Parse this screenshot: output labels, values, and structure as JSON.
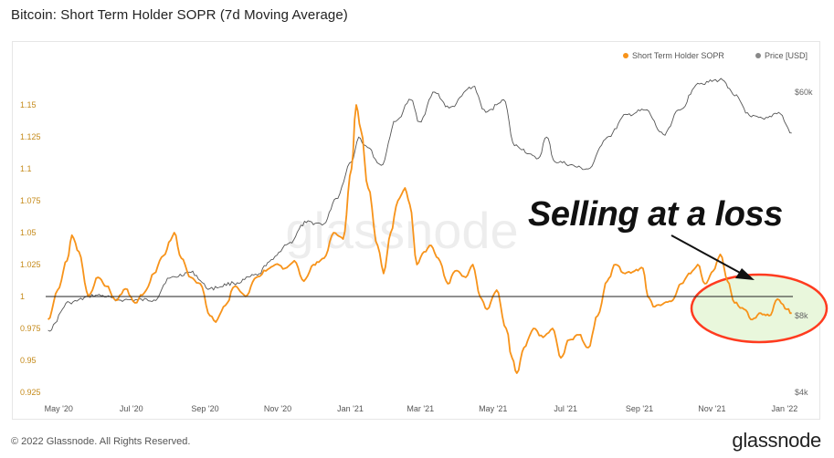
{
  "page": {
    "title": "Bitcoin: Short Term Holder SOPR (7d Moving Average)",
    "copyright": "© 2022 Glassnode. All Rights Reserved.",
    "brand": "glassnode",
    "watermark": "glassnode",
    "annotation": "Selling at a loss"
  },
  "colors": {
    "sopr": "#f7931a",
    "price": "#555555",
    "baseline": "#222222",
    "highlight": "#ff3b1f",
    "highlight_fill": "#e9f7dc"
  },
  "chart_data": {
    "type": "line",
    "title": "Bitcoin: Short Term Holder SOPR (7d Moving Average)",
    "legend": [
      "Short Term Holder SOPR",
      "Price [USD]"
    ],
    "legend_position": "top-right",
    "x_ticks": [
      "May '20",
      "Jul '20",
      "Sep '20",
      "Nov '20",
      "Jan '21",
      "Mar '21",
      "May '21",
      "Jul '21",
      "Sep '21",
      "Nov '21",
      "Jan '22"
    ],
    "x_range": [
      "2020-04-20",
      "2022-01-08"
    ],
    "y_left": {
      "label": "",
      "scale": "linear",
      "range": [
        0.925,
        1.16
      ],
      "ticks": [
        1.15,
        1.125,
        1.1,
        1.075,
        1.05,
        1.025,
        1,
        0.975,
        0.95,
        0.925
      ]
    },
    "y_right": {
      "label": "",
      "scale": "log",
      "ticks": [
        "$60k",
        "$8k",
        "$4k"
      ],
      "tick_values": [
        60000,
        8000,
        4000
      ]
    },
    "baseline": 1,
    "grid": false,
    "series": [
      {
        "name": "Short Term Holder SOPR",
        "axis": "left",
        "points": [
          [
            "2020-04-22",
            0.982
          ],
          [
            "2020-04-30",
            1.005
          ],
          [
            "2020-05-08",
            1.028
          ],
          [
            "2020-05-12",
            1.048
          ],
          [
            "2020-05-18",
            1.035
          ],
          [
            "2020-05-26",
            1.0
          ],
          [
            "2020-06-03",
            1.015
          ],
          [
            "2020-06-10",
            1.008
          ],
          [
            "2020-06-18",
            0.997
          ],
          [
            "2020-06-26",
            1.006
          ],
          [
            "2020-07-04",
            0.995
          ],
          [
            "2020-07-12",
            1.003
          ],
          [
            "2020-07-20",
            1.018
          ],
          [
            "2020-07-28",
            1.032
          ],
          [
            "2020-08-03",
            1.044
          ],
          [
            "2020-08-06",
            1.05
          ],
          [
            "2020-08-12",
            1.03
          ],
          [
            "2020-08-20",
            1.015
          ],
          [
            "2020-08-28",
            1.01
          ],
          [
            "2020-09-05",
            0.985
          ],
          [
            "2020-09-10",
            0.98
          ],
          [
            "2020-09-18",
            0.993
          ],
          [
            "2020-09-26",
            1.008
          ],
          [
            "2020-10-05",
            1.0
          ],
          [
            "2020-10-14",
            1.015
          ],
          [
            "2020-10-22",
            1.02
          ],
          [
            "2020-10-30",
            1.025
          ],
          [
            "2020-11-07",
            1.022
          ],
          [
            "2020-11-15",
            1.028
          ],
          [
            "2020-11-23",
            1.012
          ],
          [
            "2020-12-01",
            1.025
          ],
          [
            "2020-12-10",
            1.03
          ],
          [
            "2020-12-18",
            1.05
          ],
          [
            "2020-12-26",
            1.045
          ],
          [
            "2021-01-02",
            1.1
          ],
          [
            "2021-01-06",
            1.15
          ],
          [
            "2021-01-10",
            1.13
          ],
          [
            "2021-01-16",
            1.085
          ],
          [
            "2021-01-24",
            1.04
          ],
          [
            "2021-01-29",
            1.018
          ],
          [
            "2021-02-04",
            1.05
          ],
          [
            "2021-02-10",
            1.075
          ],
          [
            "2021-02-16",
            1.085
          ],
          [
            "2021-02-20",
            1.072
          ],
          [
            "2021-02-26",
            1.025
          ],
          [
            "2021-03-04",
            1.035
          ],
          [
            "2021-03-10",
            1.04
          ],
          [
            "2021-03-16",
            1.03
          ],
          [
            "2021-03-24",
            1.01
          ],
          [
            "2021-03-30",
            1.02
          ],
          [
            "2021-04-08",
            1.015
          ],
          [
            "2021-04-14",
            1.025
          ],
          [
            "2021-04-20",
            1.0
          ],
          [
            "2021-04-26",
            0.99
          ],
          [
            "2021-05-04",
            1.005
          ],
          [
            "2021-05-12",
            0.975
          ],
          [
            "2021-05-17",
            0.952
          ],
          [
            "2021-05-21",
            0.94
          ],
          [
            "2021-05-27",
            0.96
          ],
          [
            "2021-06-04",
            0.975
          ],
          [
            "2021-06-12",
            0.968
          ],
          [
            "2021-06-20",
            0.975
          ],
          [
            "2021-06-27",
            0.952
          ],
          [
            "2021-07-04",
            0.966
          ],
          [
            "2021-07-12",
            0.97
          ],
          [
            "2021-07-20",
            0.96
          ],
          [
            "2021-07-28",
            0.985
          ],
          [
            "2021-08-05",
            1.012
          ],
          [
            "2021-08-12",
            1.025
          ],
          [
            "2021-08-20",
            1.018
          ],
          [
            "2021-08-28",
            1.02
          ],
          [
            "2021-09-04",
            1.022
          ],
          [
            "2021-09-08",
            1.0
          ],
          [
            "2021-09-14",
            0.992
          ],
          [
            "2021-09-22",
            0.995
          ],
          [
            "2021-09-29",
            0.997
          ],
          [
            "2021-10-06",
            1.01
          ],
          [
            "2021-10-14",
            1.018
          ],
          [
            "2021-10-20",
            1.025
          ],
          [
            "2021-10-26",
            1.01
          ],
          [
            "2021-11-02",
            1.02
          ],
          [
            "2021-11-08",
            1.033
          ],
          [
            "2021-11-14",
            1.012
          ],
          [
            "2021-11-20",
            0.995
          ],
          [
            "2021-11-28",
            0.99
          ],
          [
            "2021-12-05",
            0.982
          ],
          [
            "2021-12-12",
            0.987
          ],
          [
            "2021-12-19",
            0.985
          ],
          [
            "2021-12-26",
            0.998
          ],
          [
            "2022-01-03",
            0.99
          ],
          [
            "2022-01-07",
            0.987
          ]
        ]
      },
      {
        "name": "Price [USD]",
        "axis": "right",
        "points": [
          [
            "2020-04-22",
            7000
          ],
          [
            "2020-05-10",
            9000
          ],
          [
            "2020-06-01",
            9600
          ],
          [
            "2020-06-25",
            9200
          ],
          [
            "2020-07-20",
            9200
          ],
          [
            "2020-08-02",
            11200
          ],
          [
            "2020-08-20",
            11800
          ],
          [
            "2020-09-05",
            10200
          ],
          [
            "2020-09-25",
            10700
          ],
          [
            "2020-10-15",
            11500
          ],
          [
            "2020-10-25",
            13000
          ],
          [
            "2020-11-10",
            15300
          ],
          [
            "2020-11-25",
            18500
          ],
          [
            "2020-12-10",
            18300
          ],
          [
            "2020-12-20",
            23000
          ],
          [
            "2021-01-02",
            32000
          ],
          [
            "2021-01-08",
            40000
          ],
          [
            "2021-01-14",
            37000
          ],
          [
            "2021-01-27",
            31000
          ],
          [
            "2021-02-08",
            46000
          ],
          [
            "2021-02-21",
            56000
          ],
          [
            "2021-02-28",
            46000
          ],
          [
            "2021-03-13",
            60000
          ],
          [
            "2021-03-25",
            52000
          ],
          [
            "2021-04-14",
            63000
          ],
          [
            "2021-04-25",
            50000
          ],
          [
            "2021-05-10",
            56000
          ],
          [
            "2021-05-19",
            37000
          ],
          [
            "2021-06-08",
            33000
          ],
          [
            "2021-06-15",
            40000
          ],
          [
            "2021-06-22",
            32000
          ],
          [
            "2021-07-20",
            30000
          ],
          [
            "2021-08-05",
            40000
          ],
          [
            "2021-08-22",
            49000
          ],
          [
            "2021-09-06",
            51000
          ],
          [
            "2021-09-21",
            41000
          ],
          [
            "2021-10-05",
            51000
          ],
          [
            "2021-10-20",
            65000
          ],
          [
            "2021-11-10",
            67000
          ],
          [
            "2021-11-20",
            58000
          ],
          [
            "2021-12-04",
            48000
          ],
          [
            "2021-12-15",
            47000
          ],
          [
            "2021-12-27",
            50000
          ],
          [
            "2022-01-07",
            41500
          ]
        ]
      }
    ]
  }
}
